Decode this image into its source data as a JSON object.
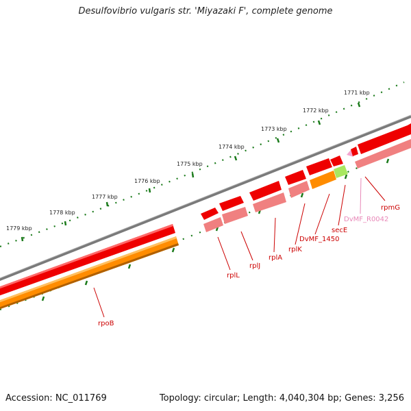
{
  "title": "Desulfovibrio vulgaris str. 'Miyazaki F', complete genome",
  "footer": {
    "accession": "Accession: NC_011769",
    "summary": "Topology: circular; Length: 4,040,304 bp; Genes: 3,256"
  },
  "colors": {
    "backbone": "#7a7a7a",
    "cds": "#ee0000",
    "gene": "#f08080",
    "rrna_like": "#ff8c00",
    "trna_like": "#a8e860",
    "ncrna": "#f4a6d0",
    "label_red": "#cc0000",
    "label_pink": "#e888b8",
    "tick": "#1a7a1a"
  },
  "scale_labels": [
    {
      "id": "1771",
      "text": "1771 kbp"
    },
    {
      "id": "1772",
      "text": "1772 kbp"
    },
    {
      "id": "1773",
      "text": "1773 kbp"
    },
    {
      "id": "1774",
      "text": "1774 kbp"
    },
    {
      "id": "1775",
      "text": "1775 kbp"
    },
    {
      "id": "1776",
      "text": "1776 kbp"
    },
    {
      "id": "1777",
      "text": "1777 kbp"
    },
    {
      "id": "1778",
      "text": "1778 kbp"
    },
    {
      "id": "1779",
      "text": "1779 kbp"
    }
  ],
  "genes": [
    {
      "id": "rpoB",
      "label": "rpoB"
    },
    {
      "id": "rplL",
      "label": "rplL"
    },
    {
      "id": "rplJ",
      "label": "rplJ"
    },
    {
      "id": "rplA",
      "label": "rplA"
    },
    {
      "id": "rplK",
      "label": "rplK"
    },
    {
      "id": "dvmf1450",
      "label": "DvMF_1450"
    },
    {
      "id": "secE",
      "label": "secE"
    },
    {
      "id": "r0042",
      "label": "DvMF_R0042"
    },
    {
      "id": "rpmG",
      "label": "rpmG"
    }
  ]
}
